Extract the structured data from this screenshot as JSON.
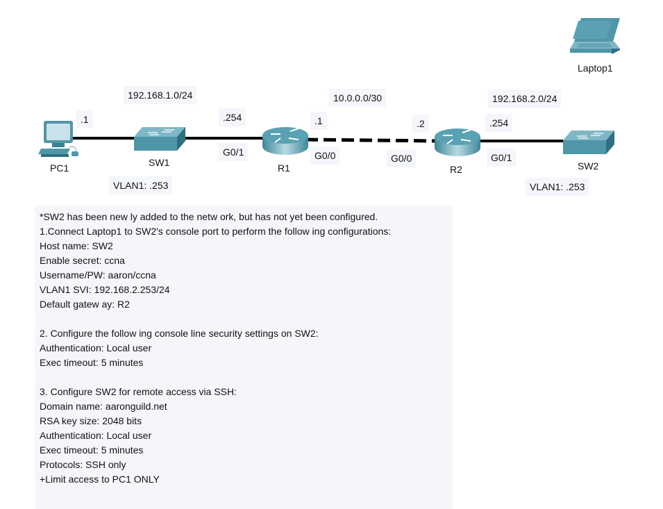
{
  "devices": {
    "pc1": {
      "name": "PC1",
      "icon": "pc-icon"
    },
    "sw1": {
      "name": "SW1",
      "icon": "switch-icon"
    },
    "r1": {
      "name": "R1",
      "icon": "router-icon"
    },
    "r2": {
      "name": "R2",
      "icon": "router-icon"
    },
    "sw2": {
      "name": "SW2",
      "icon": "switch-icon"
    },
    "laptop1": {
      "name": "Laptop1",
      "icon": "laptop-icon"
    }
  },
  "labels": {
    "net1": "192.168.1.0/24",
    "net2": "10.0.0.0/30",
    "net3": "192.168.2.0/24",
    "pc1_ip": ".1",
    "r1_g01_ip": ".254",
    "r1_g01": "G0/1",
    "r1_g00_ip": ".1",
    "r1_g00": "G0/0",
    "r2_g00_ip": ".2",
    "r2_g00": "G0/0",
    "r2_g01_ip": ".254",
    "r2_g01": "G0/1",
    "sw1_vlan": "VLAN1: .253",
    "sw2_vlan": "VLAN1: .253"
  },
  "notes": {
    "lines": [
      "*SW2 has been new ly added to the netw ork, but has not yet been configured.",
      "1.Connect Laptop1 to SW2's console port to perform the follow ing configurations:",
      "Host name: SW2",
      "Enable secret: ccna",
      "Username/PW: aaron/ccna",
      "VLAN1 SVI: 192.168.2.253/24",
      "Default gatew ay: R2",
      "",
      "2. Configure the follow ing console line security settings on SW2:",
      "Authentication: Local user",
      "Exec timeout: 5 minutes",
      "",
      "3. Configure SW2 for remote access via SSH:",
      "Domain name: aaronguild.net",
      "RSA key size: 2048 bits",
      "Authentication: Local user",
      "Exec timeout: 5 minutes",
      "Protocols: SSH only",
      "+Limit access to PC1 ONLY"
    ]
  },
  "colors": {
    "device_teal": "#4f96a8",
    "device_dark": "#2f6f80",
    "label_bg": "#f4f6fb",
    "link": "#000000"
  }
}
